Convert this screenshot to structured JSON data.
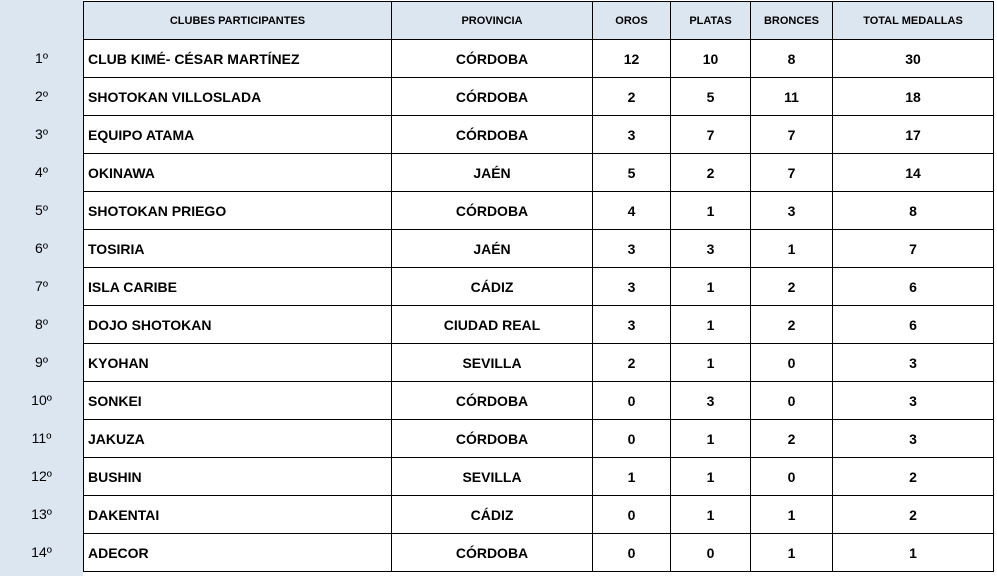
{
  "headers": [
    "CLUBES PARTICIPANTES",
    "PROVINCIA",
    "OROS",
    "PLATAS",
    "BRONCES",
    "TOTAL MEDALLAS"
  ],
  "rows": [
    {
      "pos": "1º",
      "club": "CLUB KIMÉ- CÉSAR MARTÍNEZ",
      "provincia": "CÓRDOBA",
      "oros": "12",
      "platas": "10",
      "bronces": "8",
      "total": "30"
    },
    {
      "pos": "2º",
      "club": "SHOTOKAN VILLOSLADA",
      "provincia": "CÓRDOBA",
      "oros": "2",
      "platas": "5",
      "bronces": "11",
      "total": "18"
    },
    {
      "pos": "3º",
      "club": "EQUIPO ATAMA",
      "provincia": "CÓRDOBA",
      "oros": "3",
      "platas": "7",
      "bronces": "7",
      "total": "17"
    },
    {
      "pos": "4º",
      "club": "OKINAWA",
      "provincia": "JAÉN",
      "oros": "5",
      "platas": "2",
      "bronces": "7",
      "total": "14"
    },
    {
      "pos": "5º",
      "club": "SHOTOKAN PRIEGO",
      "provincia": "CÓRDOBA",
      "oros": "4",
      "platas": "1",
      "bronces": "3",
      "total": "8"
    },
    {
      "pos": "6º",
      "club": "TOSIRIA",
      "provincia": "JAÉN",
      "oros": "3",
      "platas": "3",
      "bronces": "1",
      "total": "7"
    },
    {
      "pos": "7º",
      "club": "ISLA CARIBE",
      "provincia": "CÁDIZ",
      "oros": "3",
      "platas": "1",
      "bronces": "2",
      "total": "6"
    },
    {
      "pos": "8º",
      "club": "DOJO SHOTOKAN",
      "provincia": "CIUDAD REAL",
      "oros": "3",
      "platas": "1",
      "bronces": "2",
      "total": "6"
    },
    {
      "pos": "9º",
      "club": "KYOHAN",
      "provincia": "SEVILLA",
      "oros": "2",
      "platas": "1",
      "bronces": "0",
      "total": "3"
    },
    {
      "pos": "10º",
      "club": "SONKEI",
      "provincia": "CÓRDOBA",
      "oros": "0",
      "platas": "3",
      "bronces": "0",
      "total": "3"
    },
    {
      "pos": "11º",
      "club": "JAKUZA",
      "provincia": "CÓRDOBA",
      "oros": "0",
      "platas": "1",
      "bronces": "2",
      "total": "3"
    },
    {
      "pos": "12º",
      "club": "BUSHIN",
      "provincia": "SEVILLA",
      "oros": "1",
      "platas": "1",
      "bronces": "0",
      "total": "2"
    },
    {
      "pos": "13º",
      "club": "DAKENTAI",
      "provincia": "CÁDIZ",
      "oros": "0",
      "platas": "1",
      "bronces": "1",
      "total": "2"
    },
    {
      "pos": "14º",
      "club": "ADECOR",
      "provincia": "CÓRDOBA",
      "oros": "0",
      "platas": "0",
      "bronces": "1",
      "total": "1"
    }
  ]
}
